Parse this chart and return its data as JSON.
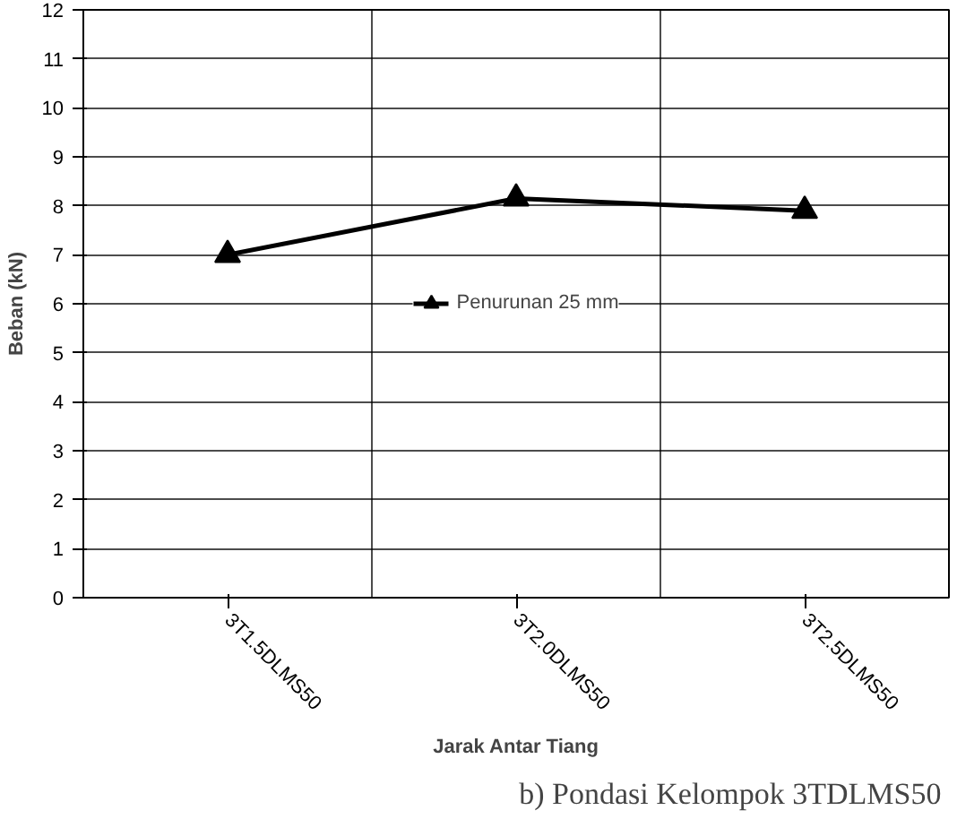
{
  "chart_data": {
    "type": "line",
    "xlabel": "Jarak Antar Tiang",
    "ylabel": "Beban (kN)",
    "categories": [
      "3T1.5DLMS50",
      "3T2.0DLMS50",
      "3T2.5DLMS50"
    ],
    "series": [
      {
        "name": "Penurunan 25 mm",
        "color": "#000000",
        "values": [
          7.0,
          8.15,
          7.9
        ]
      }
    ],
    "ylim": [
      0,
      12
    ],
    "yticks": [
      0,
      1,
      2,
      3,
      4,
      5,
      6,
      7,
      8,
      9,
      10,
      11,
      12
    ],
    "grid": true,
    "legend": "center",
    "marker": "triangle",
    "line_style": "solid",
    "annotations": [
      "b)  Pondasi Kelompok 3TDLMS50"
    ]
  }
}
